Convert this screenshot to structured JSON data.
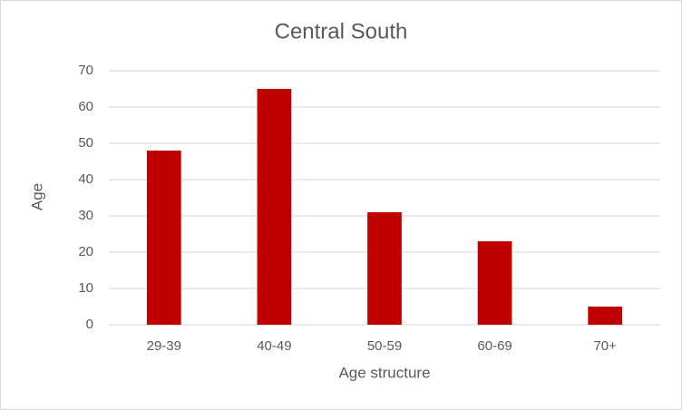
{
  "chart_data": {
    "type": "bar",
    "title": "Central South",
    "x_label": "Age structure",
    "y_label": "Age",
    "categories": [
      "29-39",
      "40-49",
      "50-59",
      "60-69",
      "70+"
    ],
    "values": [
      48,
      65,
      31,
      23,
      5
    ],
    "color": "#c00000",
    "ylim": [
      0,
      70
    ],
    "yticks": [
      0,
      10,
      20,
      30,
      40,
      50,
      60,
      70
    ],
    "grid": true
  }
}
